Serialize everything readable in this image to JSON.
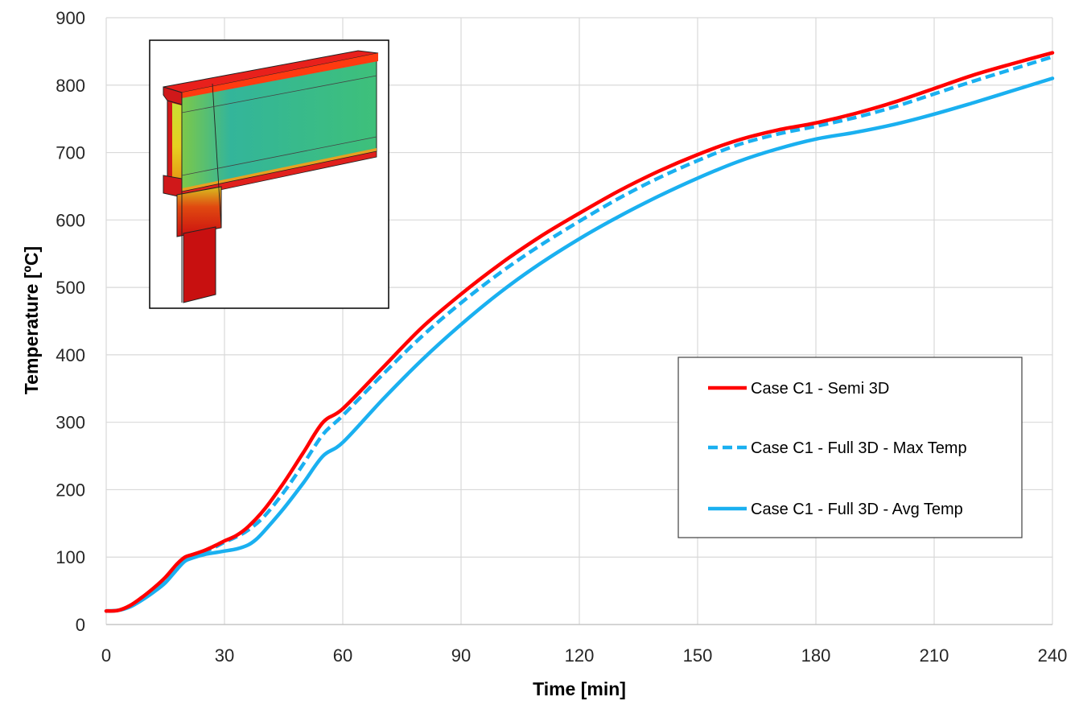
{
  "chart_data": {
    "type": "line",
    "title": "",
    "xlabel": "Time [min]",
    "ylabel": "Temperature [ºC]",
    "xlim": [
      0,
      240
    ],
    "ylim": [
      0,
      900
    ],
    "xticks": [
      0,
      30,
      60,
      90,
      120,
      150,
      180,
      210,
      240
    ],
    "yticks": [
      0,
      100,
      200,
      300,
      400,
      500,
      600,
      700,
      800,
      900
    ],
    "grid": true,
    "legend": "center-right",
    "series": [
      {
        "name": "Case C1 - Semi 3D",
        "color": "#ff0000",
        "dash": "solid",
        "x": [
          0,
          3,
          6,
          9,
          12,
          15,
          18,
          20,
          22,
          25,
          28,
          30,
          33,
          36,
          40,
          45,
          50,
          55,
          60,
          70,
          80,
          90,
          100,
          110,
          120,
          130,
          140,
          150,
          160,
          170,
          180,
          190,
          200,
          210,
          220,
          230,
          240
        ],
        "y": [
          20,
          21,
          28,
          40,
          54,
          70,
          90,
          100,
          104,
          110,
          118,
          124,
          132,
          145,
          170,
          210,
          255,
          300,
          320,
          380,
          440,
          490,
          535,
          575,
          610,
          643,
          672,
          697,
          718,
          733,
          744,
          758,
          775,
          795,
          815,
          832,
          848
        ]
      },
      {
        "name": "Case C1 - Full 3D - Max Temp",
        "color": "#1ab0f0",
        "dash": "dashed",
        "x": [
          0,
          3,
          6,
          9,
          12,
          15,
          18,
          20,
          22,
          25,
          28,
          30,
          33,
          36,
          40,
          45,
          50,
          55,
          60,
          70,
          80,
          90,
          100,
          110,
          120,
          130,
          140,
          150,
          160,
          170,
          180,
          190,
          200,
          210,
          220,
          230,
          240
        ],
        "y": [
          20,
          21,
          27,
          38,
          51,
          67,
          87,
          98,
          102,
          108,
          116,
          122,
          130,
          140,
          160,
          196,
          238,
          282,
          310,
          370,
          427,
          477,
          522,
          562,
          598,
          632,
          662,
          688,
          711,
          727,
          739,
          752,
          768,
          787,
          806,
          824,
          842
        ]
      },
      {
        "name": "Case C1 - Full 3D - Avg Temp",
        "color": "#1ab0f0",
        "dash": "solid",
        "x": [
          0,
          3,
          6,
          9,
          12,
          15,
          18,
          20,
          22,
          25,
          28,
          30,
          33,
          36,
          38,
          40,
          45,
          50,
          55,
          60,
          70,
          80,
          90,
          100,
          110,
          120,
          130,
          140,
          150,
          160,
          170,
          180,
          190,
          200,
          210,
          220,
          230,
          240
        ],
        "y": [
          20,
          21,
          26,
          36,
          48,
          62,
          82,
          94,
          99,
          104,
          107,
          109,
          112,
          118,
          126,
          138,
          172,
          210,
          250,
          270,
          333,
          392,
          445,
          493,
          535,
          572,
          605,
          635,
          662,
          686,
          705,
          720,
          730,
          742,
          757,
          774,
          792,
          810
        ]
      }
    ]
  }
}
